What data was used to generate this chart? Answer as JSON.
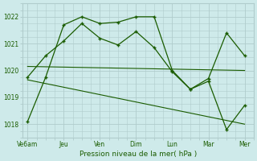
{
  "background_color": "#ceeaea",
  "grid_color": "#b0cccc",
  "line_color": "#1a5c00",
  "xtick_labels": [
    "Ve6am",
    "Jeu",
    "Ven",
    "Dim",
    "Lun",
    "Mar",
    "Mer"
  ],
  "xtick_positions": [
    0,
    2,
    4,
    6,
    8,
    10,
    12
  ],
  "xlabel": "Pression niveau de la mer( hPa )",
  "ylim": [
    1017.5,
    1022.5
  ],
  "yticks": [
    1018,
    1019,
    1020,
    1021,
    1022
  ],
  "series1_x": [
    0,
    1,
    2,
    3,
    4,
    5,
    6,
    7,
    8,
    9,
    10,
    11,
    12
  ],
  "series1_y": [
    1018.1,
    1019.75,
    1021.7,
    1022.0,
    1021.75,
    1021.8,
    1022.0,
    1022.0,
    1020.0,
    1019.3,
    1019.6,
    1017.8,
    1018.7
  ],
  "series2_x": [
    0,
    1,
    2,
    3,
    4,
    5,
    6,
    7,
    8,
    9,
    10,
    11,
    12
  ],
  "series2_y": [
    1019.75,
    1020.55,
    1021.1,
    1021.75,
    1021.2,
    1020.95,
    1021.45,
    1020.85,
    1019.95,
    1019.3,
    1019.7,
    1021.4,
    1020.55
  ],
  "trend1_x": [
    0,
    12
  ],
  "trend1_y": [
    1020.15,
    1020.0
  ],
  "trend2_x": [
    0,
    12
  ],
  "trend2_y": [
    1019.65,
    1018.0
  ],
  "figsize": [
    3.2,
    2.0
  ],
  "dpi": 100
}
